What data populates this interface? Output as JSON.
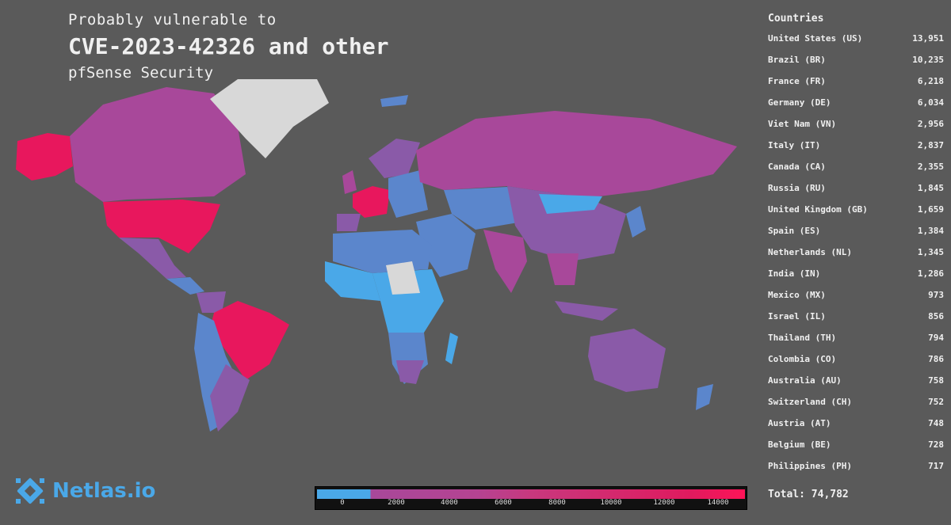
{
  "title": {
    "line1": "Probably vulnerable to",
    "line2": "CVE-2023-42326 and other",
    "line3": "pfSense Security"
  },
  "panel": {
    "header": "Countries",
    "countries": [
      {
        "name": "United States (US)",
        "value": "13,951"
      },
      {
        "name": "Brazil (BR)",
        "value": "10,235"
      },
      {
        "name": "France (FR)",
        "value": "6,218"
      },
      {
        "name": "Germany (DE)",
        "value": "6,034"
      },
      {
        "name": "Viet Nam (VN)",
        "value": "2,956"
      },
      {
        "name": "Italy (IT)",
        "value": "2,837"
      },
      {
        "name": "Canada (CA)",
        "value": "2,355"
      },
      {
        "name": "Russia (RU)",
        "value": "1,845"
      },
      {
        "name": "United Kingdom (GB)",
        "value": "1,659"
      },
      {
        "name": "Spain (ES)",
        "value": "1,384"
      },
      {
        "name": "Netherlands (NL)",
        "value": "1,345"
      },
      {
        "name": "India (IN)",
        "value": "1,286"
      },
      {
        "name": "Mexico (MX)",
        "value": "973"
      },
      {
        "name": "Israel (IL)",
        "value": "856"
      },
      {
        "name": "Thailand (TH)",
        "value": "794"
      },
      {
        "name": "Colombia (CO)",
        "value": "786"
      },
      {
        "name": "Australia (AU)",
        "value": "758"
      },
      {
        "name": "Switzerland (CH)",
        "value": "752"
      },
      {
        "name": "Austria (AT)",
        "value": "748"
      },
      {
        "name": "Belgium (BE)",
        "value": "728"
      },
      {
        "name": "Philippines (PH)",
        "value": "717"
      }
    ],
    "total": "Total: 74,782"
  },
  "logo": {
    "name": "Netlas.io"
  },
  "legend": {
    "ticks": [
      "0",
      "2000",
      "4000",
      "6000",
      "8000",
      "10000",
      "12000",
      "14000"
    ]
  },
  "colors": {
    "background": "#5a5a5a",
    "low": "#4aa8e8",
    "mid_low": "#5b86cc",
    "mid": "#8a5aa8",
    "mid_high": "#a8489a",
    "high": "#e8175d",
    "no_data": "#d8d8d8"
  }
}
